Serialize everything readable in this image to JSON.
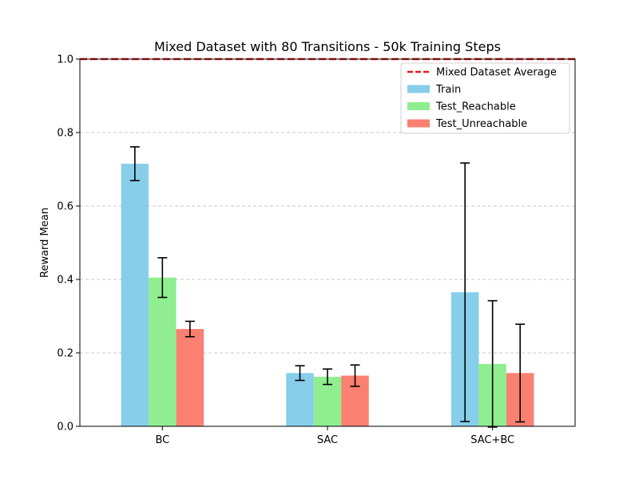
{
  "chart_data": {
    "type": "bar",
    "title": "Mixed Dataset with 80 Transitions - 50k Training Steps",
    "xlabel": "",
    "ylabel": "Reward Mean",
    "ylim": [
      0,
      1.0
    ],
    "yticks": [
      "0.0",
      "0.2",
      "0.4",
      "0.6",
      "0.8",
      "1.0"
    ],
    "categories": [
      "BC",
      "SAC",
      "SAC+BC"
    ],
    "grid": "y-dashed",
    "legend_position": "top-right",
    "reference_line": {
      "name": "Mixed Dataset Average",
      "value": 1.0,
      "color": "#e31a1c",
      "style": "dashed"
    },
    "series": [
      {
        "name": "Train",
        "color": "#87ceeb",
        "values": [
          0.715,
          0.145,
          0.365
        ],
        "errors": [
          0.046,
          0.02,
          0.352
        ]
      },
      {
        "name": "Test_Reachable",
        "color": "#90ee90",
        "values": [
          0.405,
          0.135,
          0.17
        ],
        "errors": [
          0.054,
          0.021,
          0.172
        ]
      },
      {
        "name": "Test_Unreachable",
        "color": "#fa8072",
        "values": [
          0.265,
          0.138,
          0.145
        ],
        "errors": [
          0.021,
          0.029,
          0.133
        ]
      }
    ]
  }
}
